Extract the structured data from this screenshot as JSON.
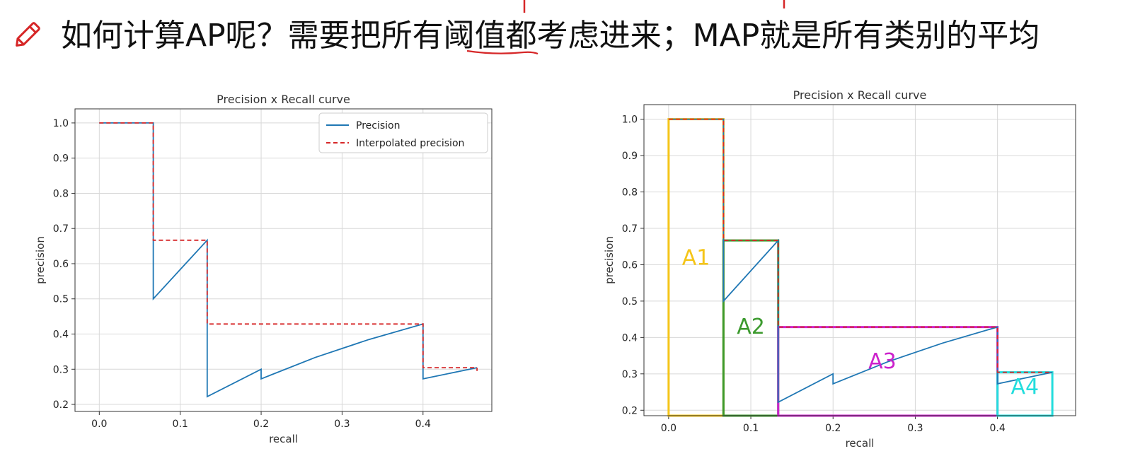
{
  "header": {
    "title": "如何计算AP呢？需要把所有阈值都考虑进来；MAP就是所有类别的平均",
    "icon": "pencil-icon",
    "accent_color": "#d62728"
  },
  "chart_data": [
    {
      "type": "line",
      "title": "Precision x Recall curve",
      "xlabel": "recall",
      "ylabel": "precision",
      "xlim": [
        -0.03,
        0.485
      ],
      "ylim": [
        0.18,
        1.04
      ],
      "xticks": [
        "0.0",
        "0.1",
        "0.2",
        "0.3",
        "0.4"
      ],
      "yticks": [
        "0.2",
        "0.3",
        "0.4",
        "0.5",
        "0.6",
        "0.7",
        "0.8",
        "0.9",
        "1.0"
      ],
      "grid": true,
      "legend": "top-right",
      "series": [
        {
          "name": "Precision",
          "color": "#1f77b4",
          "style": "solid",
          "x": [
            0.0,
            0.0667,
            0.0667,
            0.1333,
            0.1333,
            0.2,
            0.2,
            0.2667,
            0.3333,
            0.4,
            0.4,
            0.4667
          ],
          "y": [
            1.0,
            1.0,
            0.5,
            0.6667,
            0.2222,
            0.3,
            0.2727,
            0.3333,
            0.3846,
            0.4286,
            0.2727,
            0.3043
          ]
        },
        {
          "name": "Interpolated precision",
          "color": "#d62728",
          "style": "dashed",
          "x": [
            0.0,
            0.0667,
            0.0667,
            0.1333,
            0.1333,
            0.4,
            0.4,
            0.4667,
            0.4667
          ],
          "y": [
            1.0,
            1.0,
            0.6667,
            0.6667,
            0.4286,
            0.4286,
            0.3043,
            0.3043,
            0.295
          ]
        }
      ]
    },
    {
      "type": "line",
      "title": "Precision x Recall curve",
      "xlabel": "recall",
      "ylabel": "precision",
      "xlim": [
        -0.03,
        0.495
      ],
      "ylim": [
        0.185,
        1.04
      ],
      "xticks": [
        "0.0",
        "0.1",
        "0.2",
        "0.3",
        "0.4"
      ],
      "yticks": [
        "0.2",
        "0.3",
        "0.4",
        "0.5",
        "0.6",
        "0.7",
        "0.8",
        "0.9",
        "1.0"
      ],
      "grid": true,
      "series": [
        {
          "color": "#1f77b4",
          "style": "solid",
          "x": [
            0.0,
            0.0667,
            0.0667,
            0.1333,
            0.1333,
            0.2,
            0.2,
            0.2667,
            0.3333,
            0.4,
            0.4,
            0.4667
          ],
          "y": [
            1.0,
            1.0,
            0.5,
            0.6667,
            0.2222,
            0.3,
            0.2727,
            0.3333,
            0.3846,
            0.4286,
            0.2727,
            0.3043
          ]
        },
        {
          "color": "#d62728",
          "style": "dashed",
          "x": [
            0.0,
            0.0667,
            0.0667,
            0.1333,
            0.1333,
            0.4,
            0.4,
            0.4667
          ],
          "y": [
            1.0,
            1.0,
            0.6667,
            0.6667,
            0.4286,
            0.4286,
            0.3043,
            0.3043
          ]
        }
      ],
      "areas": [
        {
          "label": "A1",
          "x0": 0.0,
          "x1": 0.0667,
          "y": 1.0,
          "color": "#f5c518"
        },
        {
          "label": "A2",
          "x0": 0.0667,
          "x1": 0.1333,
          "y": 0.6667,
          "color": "#3c9a2e"
        },
        {
          "label": "A3",
          "x0": 0.1333,
          "x1": 0.4,
          "y": 0.4286,
          "color": "#cc22cc"
        },
        {
          "label": "A4",
          "x0": 0.4,
          "x1": 0.4667,
          "y": 0.3043,
          "color": "#22dddd"
        }
      ]
    }
  ]
}
